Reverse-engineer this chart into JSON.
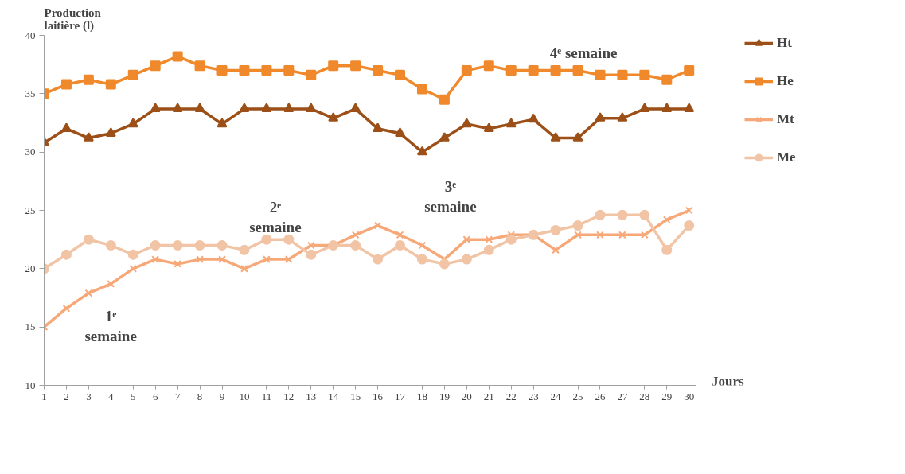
{
  "chart_data": {
    "type": "line",
    "ylabel": "Production\nlaitière (l)",
    "xlabel": "Jours",
    "x": [
      1,
      2,
      3,
      4,
      5,
      6,
      7,
      8,
      9,
      10,
      11,
      12,
      13,
      14,
      15,
      16,
      17,
      18,
      19,
      20,
      21,
      22,
      23,
      24,
      25,
      26,
      27,
      28,
      29,
      30
    ],
    "xlim": [
      1,
      30.3
    ],
    "xticks": [
      1,
      2,
      3,
      4,
      5,
      6,
      7,
      8,
      9,
      10,
      11,
      12,
      13,
      14,
      15,
      16,
      17,
      18,
      19,
      20,
      21,
      22,
      23,
      24,
      25,
      26,
      27,
      28,
      29,
      30
    ],
    "ylim": [
      10,
      40
    ],
    "yticks": [
      10,
      15,
      20,
      25,
      30,
      35,
      40
    ],
    "grid": false,
    "legend": "right",
    "line_style": "solid",
    "series": [
      {
        "name": "Ht",
        "color": "#9c5018",
        "marker": "triangle",
        "values": [
          30.8,
          32,
          31.2,
          31.6,
          32.4,
          33.7,
          33.7,
          33.7,
          32.4,
          33.7,
          33.7,
          33.7,
          33.7,
          32.9,
          33.7,
          32,
          31.6,
          30,
          31.2,
          32.4,
          32,
          32.4,
          32.8,
          31.2,
          31.2,
          32.9,
          32.9,
          33.7,
          33.7,
          33.7
        ]
      },
      {
        "name": "He",
        "color": "#f0892c",
        "marker": "square",
        "values": [
          35,
          35.8,
          36.2,
          35.8,
          36.6,
          37.4,
          38.2,
          37.4,
          37,
          37,
          37,
          37,
          36.6,
          37.4,
          37.4,
          37,
          36.6,
          35.4,
          34.5,
          37,
          37.4,
          37,
          37,
          37,
          37,
          36.6,
          36.6,
          36.6,
          36.2,
          37
        ]
      },
      {
        "name": "Mt",
        "color": "#f7a878",
        "marker": "cross",
        "values": [
          15,
          16.6,
          17.9,
          18.7,
          20,
          20.8,
          20.4,
          20.8,
          20.8,
          20,
          20.8,
          20.8,
          22,
          22,
          22.9,
          23.7,
          22.9,
          22,
          20.8,
          22.5,
          22.5,
          22.9,
          22.9,
          21.6,
          22.9,
          22.9,
          22.9,
          22.9,
          24.2,
          25
        ]
      },
      {
        "name": "Me",
        "color": "#f2c4a6",
        "marker": "circle",
        "values": [
          20,
          21.2,
          22.5,
          22,
          21.2,
          22,
          22,
          22,
          22,
          21.6,
          22.5,
          22.5,
          21.2,
          22,
          22,
          20.8,
          22,
          20.8,
          20.4,
          20.8,
          21.6,
          22.5,
          22.9,
          23.3,
          23.7,
          24.6,
          24.6,
          24.6,
          21.6,
          23.7
        ]
      }
    ],
    "annotations": [
      "1ᵉ\nsemaine",
      "2ᵉ\nsemaine",
      "3ᵉ\nsemaine",
      "4ᵉ semaine"
    ]
  }
}
